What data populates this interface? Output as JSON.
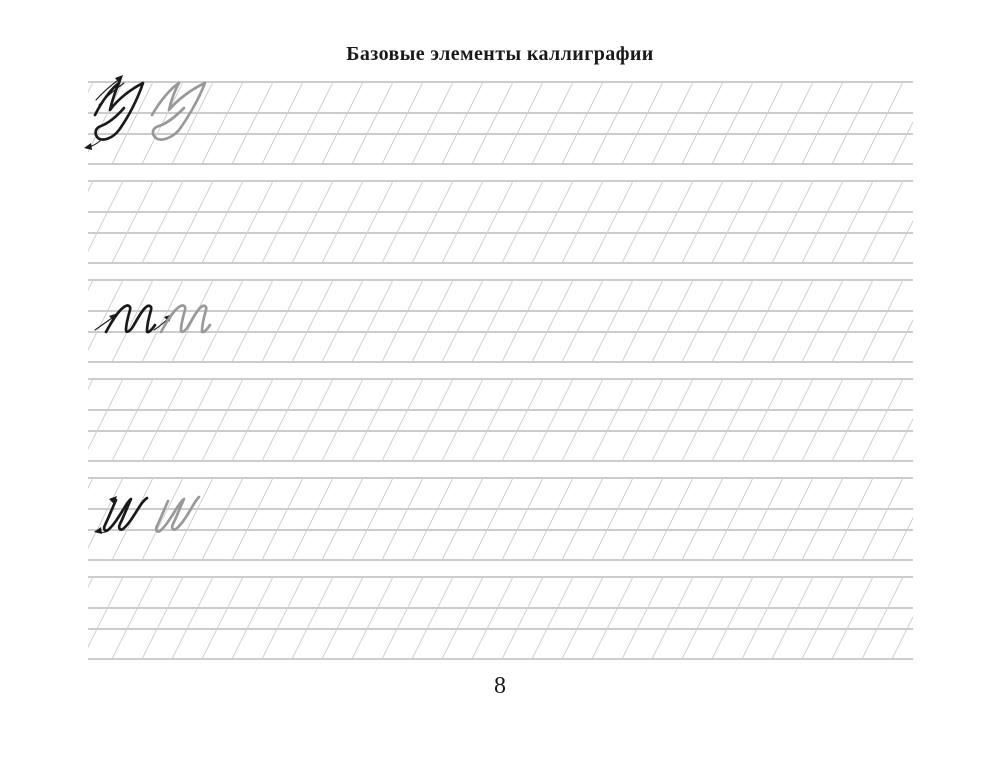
{
  "header": {
    "title": "Базовые элементы каллиграфии"
  },
  "footer": {
    "page_number": "8"
  },
  "colors": {
    "paper": "#ffffff",
    "text_ink": "#1a1a1a",
    "rule_line": "#c4c4c4",
    "slant_line": "#d0d0d0",
    "ink_black": "#1a1a1a",
    "ink_gray": "#999999"
  },
  "worksheet": {
    "band_count": 6,
    "bands": [
      {
        "id": 1,
        "samples": [
          {
            "glyph": "loop-descender-stroke",
            "ink": "black",
            "direction_arrows": true
          },
          {
            "glyph": "loop-descender-stroke",
            "ink": "gray",
            "direction_arrows": false
          }
        ]
      },
      {
        "id": 2,
        "samples": []
      },
      {
        "id": 3,
        "samples": [
          {
            "glyph": "double-arch-wave-stroke",
            "ink": "black",
            "direction_arrows": true
          },
          {
            "glyph": "double-arch-wave-stroke",
            "ink": "gray",
            "direction_arrows": false
          }
        ]
      },
      {
        "id": 4,
        "samples": []
      },
      {
        "id": 5,
        "samples": [
          {
            "glyph": "hook-understroke",
            "ink": "black",
            "direction_arrows": true
          },
          {
            "glyph": "hook-understroke",
            "ink": "gray",
            "direction_arrows": false
          }
        ]
      },
      {
        "id": 6,
        "samples": []
      }
    ]
  }
}
